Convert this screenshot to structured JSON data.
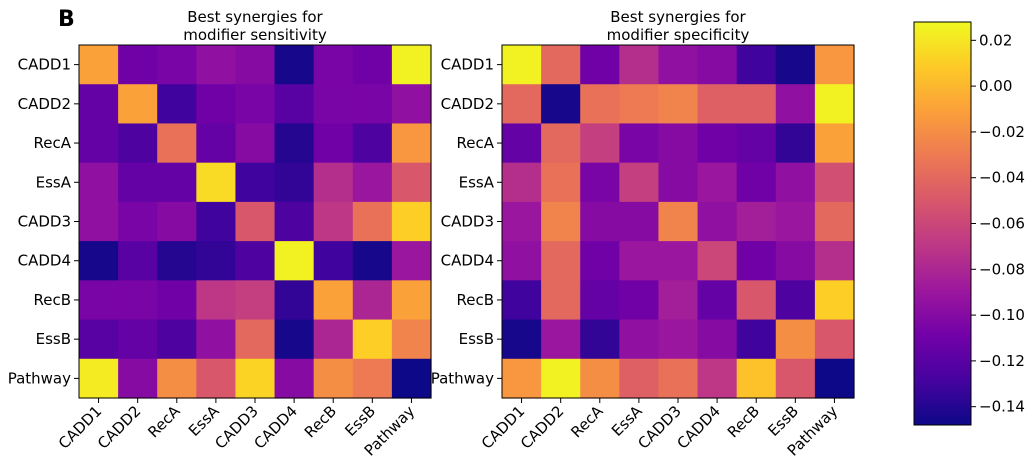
{
  "figure": {
    "panel_label": "B"
  },
  "colorscale": {
    "name": "plasma",
    "stops": [
      "#0d0887",
      "#46039f",
      "#7201a8",
      "#9c179e",
      "#bd3786",
      "#d8576b",
      "#ed7953",
      "#fb9f3a",
      "#fdca26",
      "#f0f921"
    ],
    "vmin": -0.148,
    "vmax": 0.028,
    "ticks": [
      0.02,
      0.0,
      -0.02,
      -0.04,
      -0.06,
      -0.08,
      -0.1,
      -0.12,
      -0.14
    ],
    "tick_labels": [
      "0.02",
      "0.00",
      "−0.02",
      "−0.04",
      "−0.06",
      "−0.08",
      "−0.10",
      "−0.12",
      "−0.14"
    ]
  },
  "chart_data": [
    {
      "type": "heatmap",
      "title_lines": [
        "Best synergies for",
        "modifier sensitivity"
      ],
      "row_labels": [
        "CADD1",
        "CADD2",
        "RecA",
        "EssA",
        "CADD3",
        "CADD4",
        "RecB",
        "EssB",
        "Pathway"
      ],
      "col_labels": [
        "CADD1",
        "CADD2",
        "RecA",
        "EssA",
        "CADD3",
        "CADD4",
        "RecB",
        "EssB",
        "Pathway"
      ],
      "values": [
        [
          -0.01,
          -0.11,
          -0.105,
          -0.095,
          -0.1,
          -0.145,
          -0.105,
          -0.11,
          0.025
        ],
        [
          -0.115,
          -0.01,
          -0.13,
          -0.11,
          -0.105,
          -0.12,
          -0.105,
          -0.105,
          -0.095
        ],
        [
          -0.115,
          -0.125,
          -0.035,
          -0.115,
          -0.1,
          -0.14,
          -0.11,
          -0.125,
          -0.015
        ],
        [
          -0.095,
          -0.115,
          -0.115,
          0.015,
          -0.13,
          -0.135,
          -0.075,
          -0.09,
          -0.05
        ],
        [
          -0.095,
          -0.105,
          -0.1,
          -0.13,
          -0.05,
          -0.125,
          -0.07,
          -0.035,
          0.01
        ],
        [
          -0.145,
          -0.12,
          -0.14,
          -0.135,
          -0.125,
          0.025,
          -0.13,
          -0.145,
          -0.09
        ],
        [
          -0.105,
          -0.105,
          -0.11,
          -0.07,
          -0.065,
          -0.135,
          -0.01,
          -0.08,
          -0.01
        ],
        [
          -0.12,
          -0.115,
          -0.125,
          -0.095,
          -0.04,
          -0.145,
          -0.08,
          0.01,
          -0.025
        ],
        [
          0.022,
          -0.1,
          -0.02,
          -0.05,
          0.012,
          -0.1,
          -0.02,
          -0.03,
          -0.148
        ]
      ]
    },
    {
      "type": "heatmap",
      "title_lines": [
        "Best synergies for",
        "modifier specificity"
      ],
      "row_labels": [
        "CADD1",
        "CADD2",
        "RecA",
        "EssA",
        "CADD3",
        "CADD4",
        "RecB",
        "EssB",
        "Pathway"
      ],
      "col_labels": [
        "CADD1",
        "CADD2",
        "RecA",
        "EssA",
        "CADD3",
        "CADD4",
        "RecB",
        "EssB",
        "Pathway"
      ],
      "values": [
        [
          0.025,
          -0.04,
          -0.11,
          -0.075,
          -0.095,
          -0.1,
          -0.13,
          -0.145,
          -0.015
        ],
        [
          -0.04,
          -0.145,
          -0.035,
          -0.03,
          -0.025,
          -0.045,
          -0.045,
          -0.095,
          0.025
        ],
        [
          -0.115,
          -0.04,
          -0.065,
          -0.105,
          -0.1,
          -0.11,
          -0.115,
          -0.135,
          -0.01
        ],
        [
          -0.075,
          -0.035,
          -0.105,
          -0.065,
          -0.1,
          -0.09,
          -0.11,
          -0.095,
          -0.055
        ],
        [
          -0.09,
          -0.025,
          -0.1,
          -0.1,
          -0.025,
          -0.095,
          -0.085,
          -0.09,
          -0.04
        ],
        [
          -0.095,
          -0.04,
          -0.11,
          -0.09,
          -0.09,
          -0.06,
          -0.11,
          -0.1,
          -0.075
        ],
        [
          -0.13,
          -0.04,
          -0.115,
          -0.11,
          -0.085,
          -0.115,
          -0.05,
          -0.125,
          0.01
        ],
        [
          -0.145,
          -0.09,
          -0.135,
          -0.095,
          -0.09,
          -0.1,
          -0.13,
          -0.02,
          -0.05
        ],
        [
          -0.015,
          0.025,
          -0.02,
          -0.045,
          -0.035,
          -0.07,
          0.005,
          -0.05,
          -0.148
        ]
      ]
    }
  ]
}
